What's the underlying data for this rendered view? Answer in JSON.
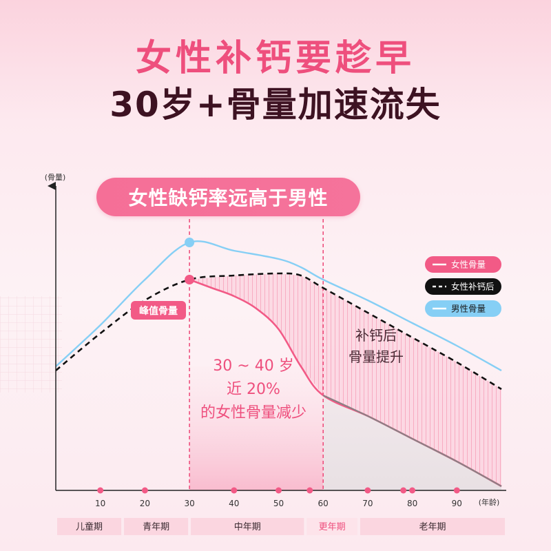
{
  "header": {
    "title": "女性补钙要趁早",
    "subtitle": "30岁+骨量加速流失"
  },
  "banner": "女性缺钙率远高于男性",
  "colors": {
    "female": "#f25a86",
    "male": "#86cff5",
    "supplement": "#111111",
    "title_pink": "#ee4f7d",
    "title_dark": "#3d1222"
  },
  "chart_data": {
    "type": "line",
    "ylabel": "(骨量)",
    "xlabel": "(年龄)",
    "x_ticks": [
      10,
      20,
      30,
      40,
      50,
      60,
      70,
      80,
      90
    ],
    "xlim": [
      0,
      100
    ],
    "ylim": [
      0,
      100
    ],
    "series": [
      {
        "name": "女性骨量",
        "color": "#f25a86",
        "points": [
          [
            0,
            29
          ],
          [
            30,
            51
          ],
          [
            35,
            49
          ],
          [
            40,
            47
          ],
          [
            45,
            44
          ],
          [
            50,
            39
          ],
          [
            55,
            30
          ],
          [
            60,
            23
          ],
          [
            70,
            18
          ],
          [
            80,
            12.5
          ],
          [
            90,
            7
          ],
          [
            100,
            1
          ]
        ]
      },
      {
        "name": "女性补钙后",
        "color": "#111111",
        "points": [
          [
            0,
            29
          ],
          [
            10,
            38
          ],
          [
            20,
            46
          ],
          [
            30,
            51
          ],
          [
            40,
            52
          ],
          [
            50,
            52.5
          ],
          [
            55,
            52
          ],
          [
            60,
            49
          ],
          [
            70,
            43
          ],
          [
            80,
            37
          ],
          [
            90,
            31
          ],
          [
            100,
            24.5
          ]
        ]
      },
      {
        "name": "男性骨量",
        "color": "#86cff5",
        "points": [
          [
            0,
            30
          ],
          [
            10,
            40
          ],
          [
            20,
            51
          ],
          [
            30,
            60
          ],
          [
            40,
            58
          ],
          [
            50,
            56
          ],
          [
            55,
            54
          ],
          [
            60,
            51
          ],
          [
            70,
            46
          ],
          [
            80,
            40.5
          ],
          [
            90,
            35
          ],
          [
            100,
            29
          ]
        ]
      }
    ],
    "annotations": {
      "peak_label": "峰值骨量",
      "mid_text": [
        "30 ~ 40 岁",
        "近 20%",
        "的女性骨量减少"
      ],
      "right_text": [
        "补钙后",
        "骨量提升"
      ]
    },
    "dashed_markers_at": [
      30,
      60
    ],
    "legend_position": "right",
    "life_stages": [
      {
        "label": "儿童期",
        "from": 0,
        "to": 15
      },
      {
        "label": "青年期",
        "from": 15,
        "to": 30
      },
      {
        "label": "中年期",
        "from": 30,
        "to": 56
      },
      {
        "label": "更年期",
        "from": 56,
        "to": 68
      },
      {
        "label": "老年期",
        "from": 68,
        "to": 100
      }
    ]
  }
}
